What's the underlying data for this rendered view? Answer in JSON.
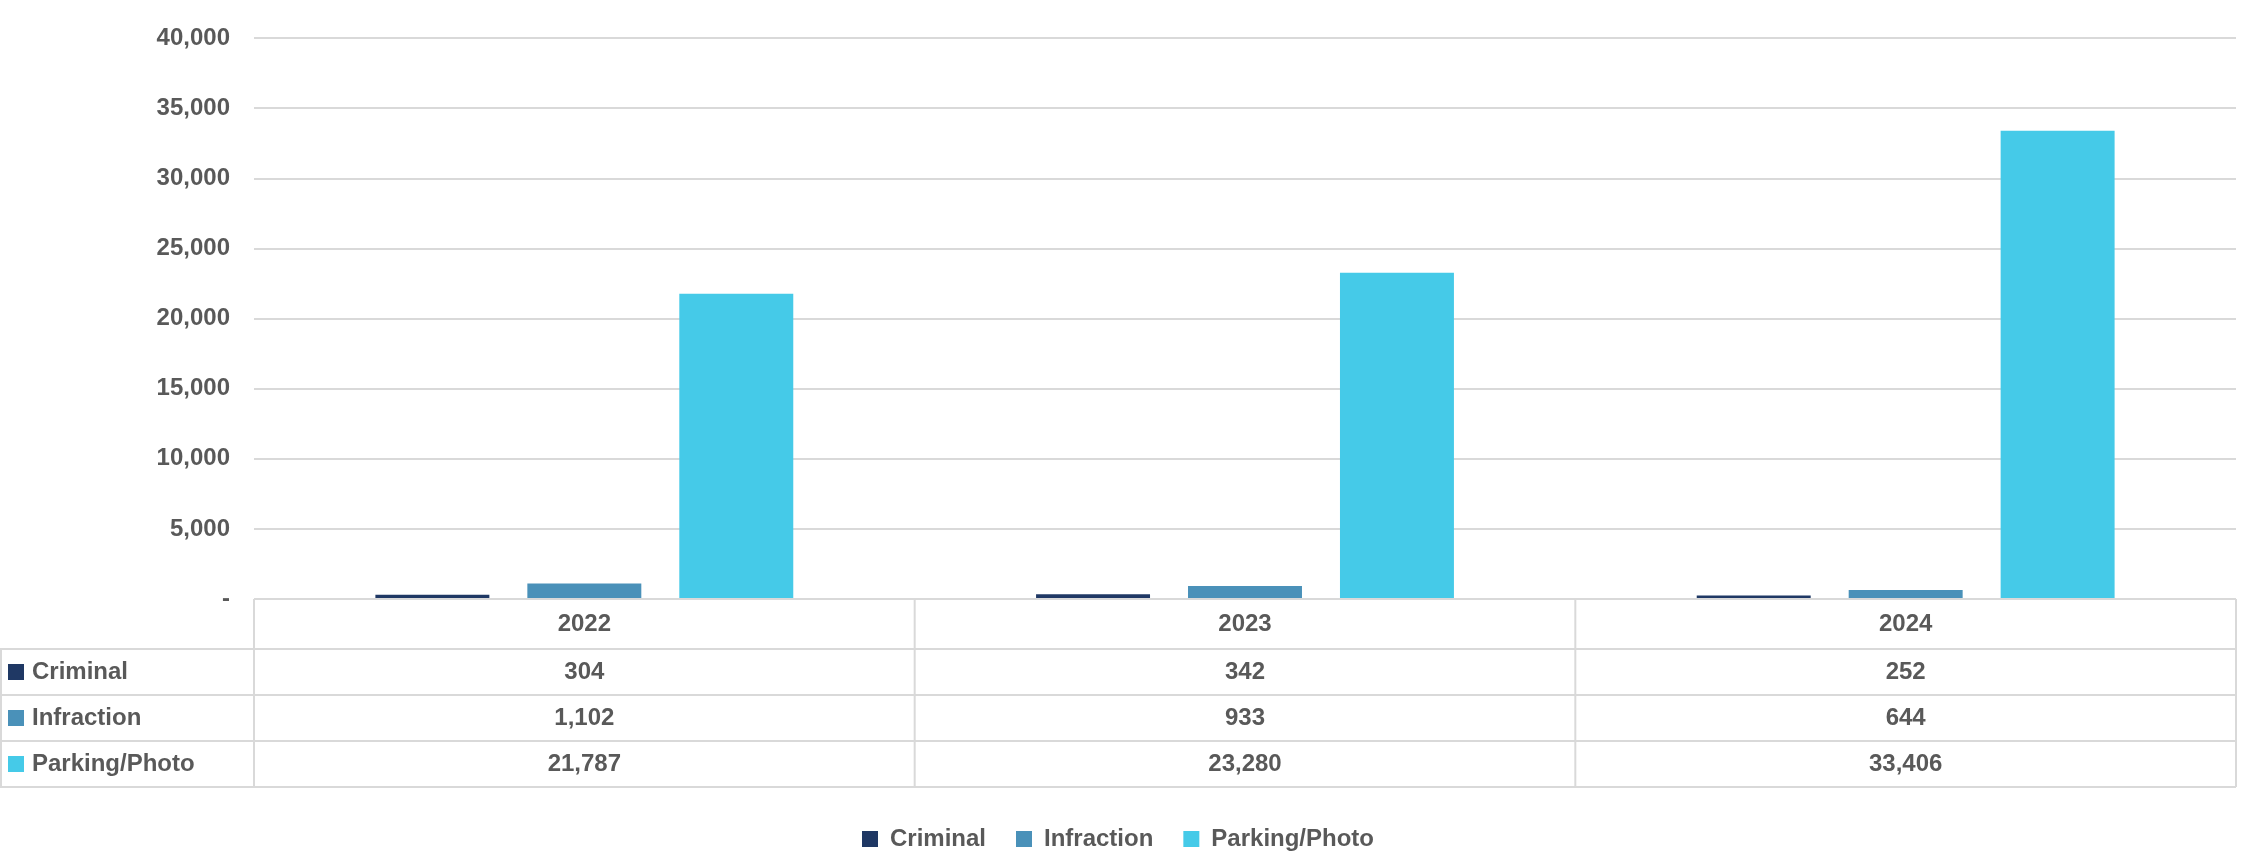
{
  "chart_data": {
    "type": "bar",
    "categories": [
      "2022",
      "2023",
      "2024"
    ],
    "series": [
      {
        "name": "Criminal",
        "color": "#1f3864",
        "values": [
          304,
          342,
          252
        ],
        "value_labels": [
          "304",
          "342",
          "252"
        ]
      },
      {
        "name": "Infraction",
        "color": "#4a91b9",
        "values": [
          1102,
          933,
          644
        ],
        "value_labels": [
          "1,102",
          "933",
          "644"
        ]
      },
      {
        "name": "Parking/Photo",
        "color": "#45cae8",
        "values": [
          21787,
          23280,
          33406
        ],
        "value_labels": [
          "21,787",
          "23,280",
          "33,406"
        ]
      }
    ],
    "ylim": [
      0,
      40000
    ],
    "yticks": [
      {
        "value": 0,
        "label": "-"
      },
      {
        "value": 5000,
        "label": "5,000"
      },
      {
        "value": 10000,
        "label": "10,000"
      },
      {
        "value": 15000,
        "label": "15,000"
      },
      {
        "value": 20000,
        "label": "20,000"
      },
      {
        "value": 25000,
        "label": "25,000"
      },
      {
        "value": 30000,
        "label": "30,000"
      },
      {
        "value": 35000,
        "label": "35,000"
      },
      {
        "value": 40000,
        "label": "40,000"
      }
    ],
    "grid": "y",
    "legend": "bottom"
  }
}
